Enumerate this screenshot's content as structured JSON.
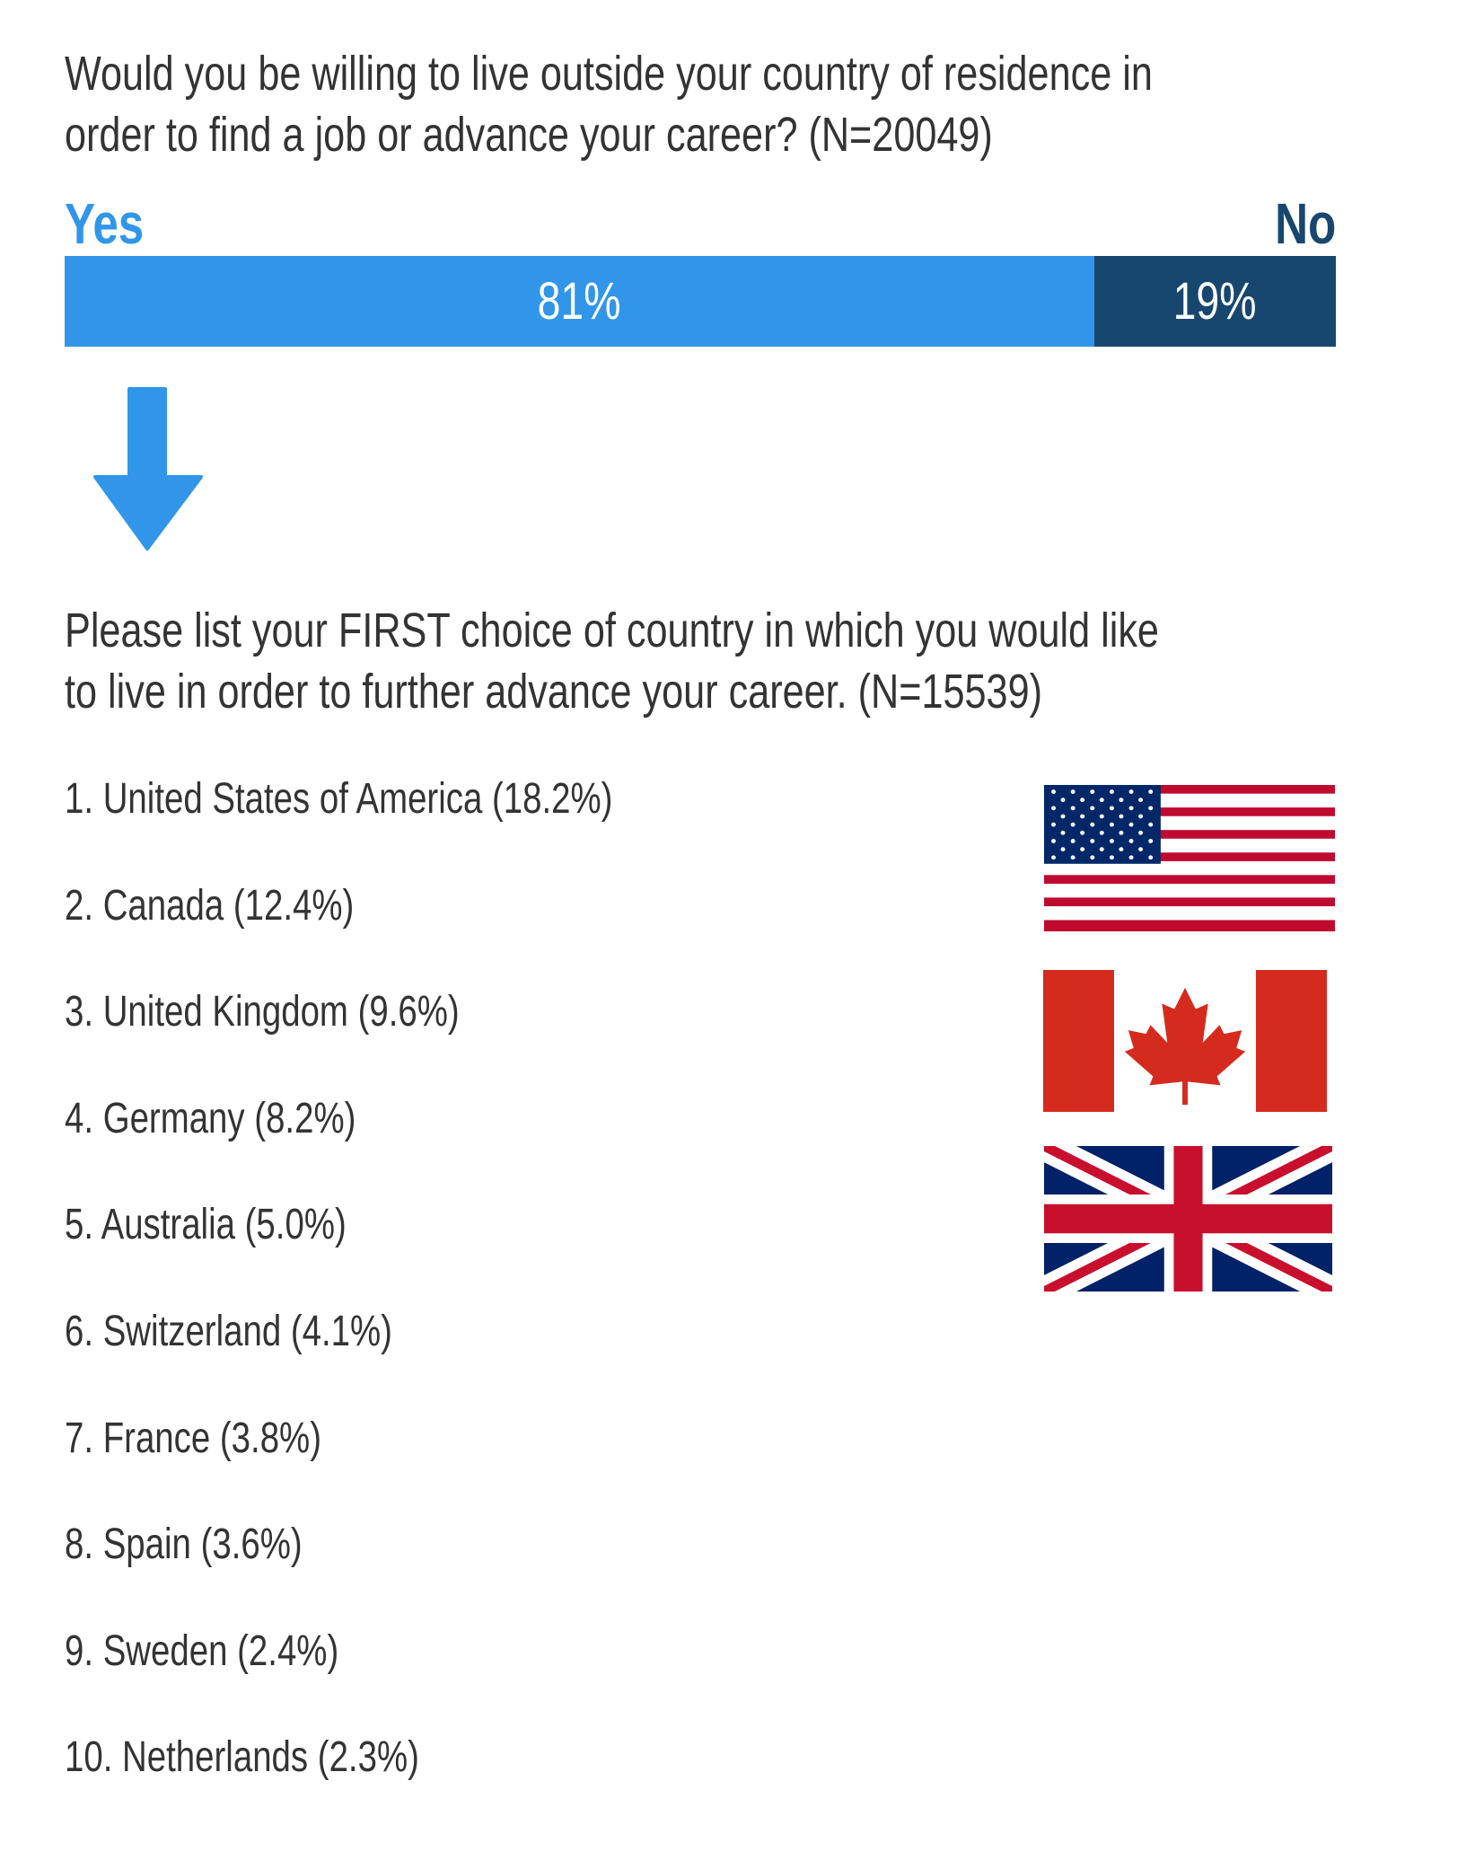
{
  "question1": {
    "line1": "Would you be willing to live outside your country of residence in",
    "line2": "order to find a job or advance your career? (N=20049)"
  },
  "chart_data": {
    "type": "bar",
    "orientation": "horizontal-stacked",
    "categories": [
      "Yes",
      "No"
    ],
    "values": [
      81,
      19
    ],
    "data_labels": [
      "81%",
      "19%"
    ],
    "colors": [
      "#3196E9",
      "#17476F"
    ]
  },
  "labels": {
    "yes": "Yes",
    "no": "No"
  },
  "arrow_icon": "arrow-down-icon",
  "question2": {
    "line1": "Please list your FIRST choice of country in which you would like",
    "line2": "to live in order to further advance your career. (N=15539)"
  },
  "ranking": [
    "1. United States of America (18.2%)",
    "2. Canada (12.4%)",
    "3. United Kingdom (9.6%)",
    "4. Germany (8.2%)",
    "5. Australia (5.0%)",
    "6. Switzerland (4.1%)",
    "7. France (3.8%)",
    "8. Spain (3.6%)",
    "9. Sweden (2.4%)",
    "10. Netherlands (2.3%)"
  ],
  "flags": [
    "us-flag-icon",
    "canada-flag-icon",
    "uk-flag-icon"
  ]
}
